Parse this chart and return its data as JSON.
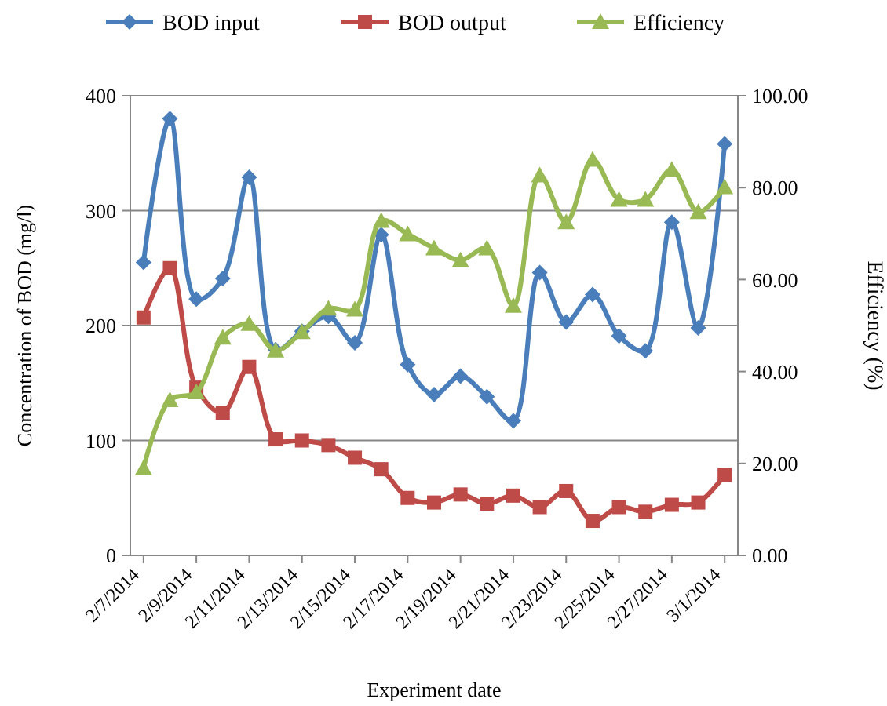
{
  "chart_data": {
    "type": "line",
    "xlabel": "Experiment date",
    "ylabel": "Concentration of BOD (mg/l)",
    "y2label": "Efficiency  (%)",
    "categories": [
      "2/7/2014",
      null,
      "2/9/2014",
      null,
      "2/11/2014",
      null,
      "2/13/2014",
      null,
      "2/15/2014",
      null,
      "2/17/2014",
      null,
      "2/19/2014",
      null,
      "2/21/2014",
      null,
      "2/23/2014",
      null,
      "2/25/2014",
      null,
      "2/27/2014",
      null,
      "3/1/2014"
    ],
    "series": [
      {
        "name": "BOD input",
        "color": "#4a7ebb",
        "marker": "diamond",
        "values": [
          255,
          380,
          223,
          241,
          329,
          179,
          195,
          208,
          185,
          279,
          166,
          140,
          156,
          138,
          117,
          246,
          203,
          227,
          191,
          178,
          290,
          198,
          358
        ]
      },
      {
        "name": "BOD output",
        "color": "#be4b48",
        "marker": "square",
        "values": [
          207,
          250,
          146,
          124,
          164,
          101,
          100,
          96,
          85,
          75,
          50,
          46,
          53,
          45,
          52,
          42,
          56,
          30,
          42,
          38,
          44,
          46,
          70
        ]
      },
      {
        "name": "Efficiency",
        "color": "#98b954",
        "marker": "triangle",
        "axis": "y2",
        "values": [
          19.0,
          33.8,
          35.5,
          47.4,
          50.4,
          44.6,
          48.6,
          53.7,
          53.5,
          72.8,
          69.9,
          66.8,
          64.2,
          66.8,
          54.3,
          82.7,
          72.5,
          86.1,
          77.4,
          77.4,
          83.9,
          74.7,
          80.1
        ]
      }
    ],
    "ylim": [
      0,
      400
    ],
    "yticks": [
      0,
      100,
      200,
      300,
      400
    ],
    "y2lim": [
      0,
      100
    ],
    "y2ticks": [
      {
        "value": 0,
        "label": "0.00"
      },
      {
        "value": 20,
        "label": "20.00"
      },
      {
        "value": 40,
        "label": "40.00"
      },
      {
        "value": 60,
        "label": "60.00"
      },
      {
        "value": 80,
        "label": "80.00"
      },
      {
        "value": 100,
        "label": "100.00"
      }
    ],
    "grid": "y",
    "legend": "top"
  }
}
